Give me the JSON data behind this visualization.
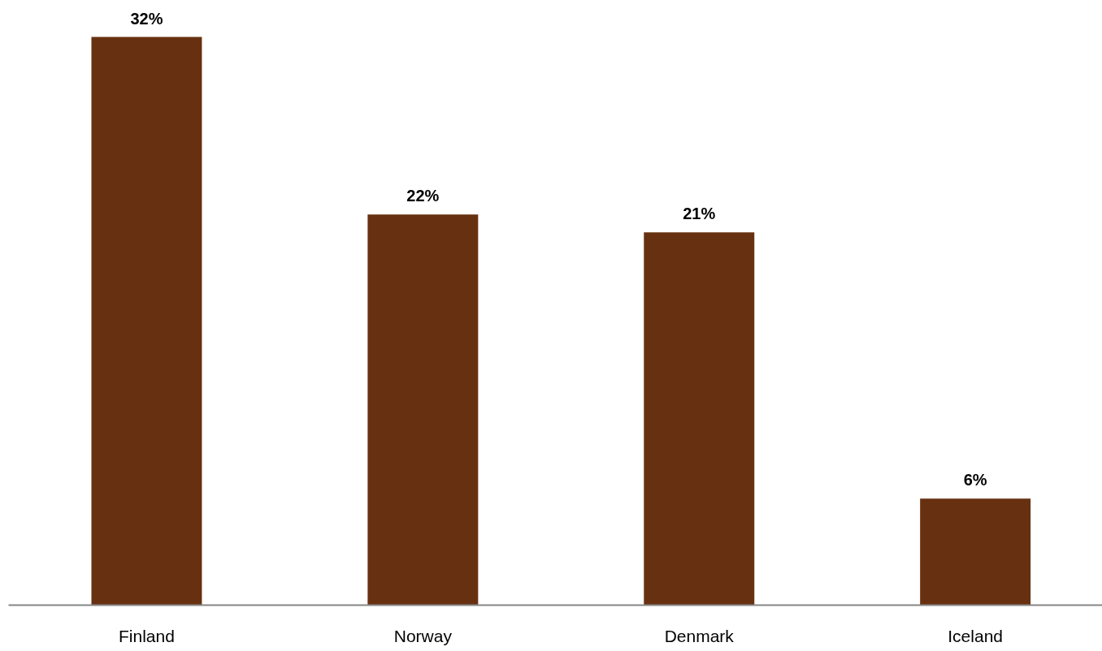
{
  "chart_data": {
    "type": "bar",
    "categories": [
      "Finland",
      "Norway",
      "Denmark",
      "Iceland"
    ],
    "values": [
      32,
      22,
      21,
      6
    ],
    "value_labels": [
      "32%",
      "22%",
      "21%",
      "6%"
    ],
    "color": "#673111"
  }
}
